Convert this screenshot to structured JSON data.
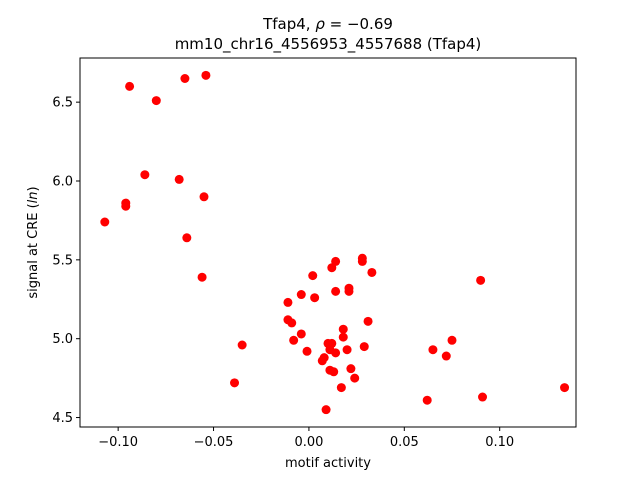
{
  "chart_data": {
    "type": "scatter",
    "title_line1": "Tfap4, ",
    "title_rho": "ρ",
    "title_value": " = −0.69",
    "title_line2": "mm10_chr16_4556953_4557688 (Tfap4)",
    "xlabel": "motif activity",
    "ylabel_prefix": "signal at CRE (",
    "ylabel_italic": "ln",
    "ylabel_suffix": ")",
    "xlim": [
      -0.12,
      0.14
    ],
    "ylim": [
      4.44,
      6.78
    ],
    "xticks": [
      -0.1,
      -0.05,
      0.0,
      0.05,
      0.1
    ],
    "xtick_labels": [
      "−0.10",
      "−0.05",
      "0.00",
      "0.05",
      "0.10"
    ],
    "yticks": [
      4.5,
      5.0,
      5.5,
      6.0,
      6.5
    ],
    "ytick_labels": [
      "4.5",
      "5.0",
      "5.5",
      "6.0",
      "6.5"
    ],
    "marker_color": "#ff0000",
    "grid": false,
    "points": [
      {
        "x": -0.107,
        "y": 5.74
      },
      {
        "x": -0.094,
        "y": 6.6
      },
      {
        "x": -0.096,
        "y": 5.86
      },
      {
        "x": -0.096,
        "y": 5.84
      },
      {
        "x": -0.086,
        "y": 6.04
      },
      {
        "x": -0.08,
        "y": 6.51
      },
      {
        "x": -0.068,
        "y": 6.01
      },
      {
        "x": -0.065,
        "y": 6.65
      },
      {
        "x": -0.064,
        "y": 5.64
      },
      {
        "x": -0.054,
        "y": 6.67
      },
      {
        "x": -0.055,
        "y": 5.9
      },
      {
        "x": -0.056,
        "y": 5.39
      },
      {
        "x": -0.035,
        "y": 4.96
      },
      {
        "x": -0.039,
        "y": 4.72
      },
      {
        "x": -0.011,
        "y": 5.23
      },
      {
        "x": -0.011,
        "y": 5.12
      },
      {
        "x": -0.009,
        "y": 5.1
      },
      {
        "x": -0.008,
        "y": 4.99
      },
      {
        "x": -0.004,
        "y": 5.28
      },
      {
        "x": -0.004,
        "y": 5.03
      },
      {
        "x": -0.001,
        "y": 4.92
      },
      {
        "x": 0.002,
        "y": 5.4
      },
      {
        "x": 0.003,
        "y": 5.26
      },
      {
        "x": 0.007,
        "y": 4.86
      },
      {
        "x": 0.008,
        "y": 4.88
      },
      {
        "x": 0.009,
        "y": 4.55
      },
      {
        "x": 0.01,
        "y": 4.97
      },
      {
        "x": 0.011,
        "y": 4.93
      },
      {
        "x": 0.011,
        "y": 4.8
      },
      {
        "x": 0.012,
        "y": 5.45
      },
      {
        "x": 0.012,
        "y": 4.97
      },
      {
        "x": 0.013,
        "y": 4.79
      },
      {
        "x": 0.014,
        "y": 5.49
      },
      {
        "x": 0.014,
        "y": 5.3
      },
      {
        "x": 0.014,
        "y": 4.91
      },
      {
        "x": 0.017,
        "y": 4.69
      },
      {
        "x": 0.018,
        "y": 5.06
      },
      {
        "x": 0.018,
        "y": 5.01
      },
      {
        "x": 0.02,
        "y": 4.93
      },
      {
        "x": 0.021,
        "y": 5.3
      },
      {
        "x": 0.021,
        "y": 5.32
      },
      {
        "x": 0.022,
        "y": 4.81
      },
      {
        "x": 0.024,
        "y": 4.75
      },
      {
        "x": 0.028,
        "y": 5.49
      },
      {
        "x": 0.028,
        "y": 5.51
      },
      {
        "x": 0.029,
        "y": 4.95
      },
      {
        "x": 0.031,
        "y": 5.11
      },
      {
        "x": 0.033,
        "y": 5.42
      },
      {
        "x": 0.062,
        "y": 4.61
      },
      {
        "x": 0.065,
        "y": 4.93
      },
      {
        "x": 0.072,
        "y": 4.89
      },
      {
        "x": 0.075,
        "y": 4.99
      },
      {
        "x": 0.09,
        "y": 5.37
      },
      {
        "x": 0.091,
        "y": 4.63
      },
      {
        "x": 0.134,
        "y": 4.69
      }
    ]
  }
}
